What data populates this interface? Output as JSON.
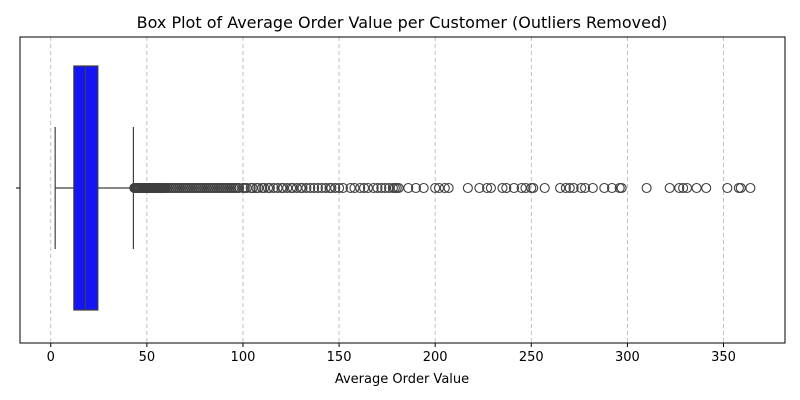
{
  "chart_data": {
    "type": "box",
    "title": "Box Plot of Average Order Value per Customer (Outliers Removed)",
    "xlabel": "Average Order Value",
    "ylabel": "",
    "xlim": [
      -16,
      382
    ],
    "xticks": [
      0,
      50,
      100,
      150,
      200,
      250,
      300,
      350
    ],
    "y_tick_labels": [
      ""
    ],
    "grid": {
      "x": true,
      "y": false,
      "style": "dashed"
    },
    "box": {
      "whisker_low": 2.3,
      "q1": 12.0,
      "median": 18.0,
      "q3": 24.5,
      "whisker_high": 43.0,
      "color": "#1414f5",
      "edge_color": "#3f3f3f",
      "median_color": "#3f3f3f"
    },
    "outliers": [
      43.5,
      44,
      44.5,
      45,
      45.5,
      46,
      46.5,
      47,
      47.5,
      48,
      48.5,
      49,
      49.5,
      50,
      50.5,
      51,
      51.5,
      52,
      52.5,
      53,
      53.5,
      54,
      54.5,
      55,
      55.5,
      56,
      56.5,
      57,
      57.5,
      58,
      58.5,
      59,
      59.5,
      60,
      61,
      62,
      63,
      64,
      65,
      66,
      67,
      68,
      69,
      70,
      71,
      72,
      73,
      74,
      75,
      76,
      77,
      78,
      79,
      80,
      81,
      82,
      83,
      84,
      85,
      86,
      87,
      88,
      89,
      90,
      91,
      92,
      93,
      94,
      95,
      96,
      97,
      98,
      100,
      101,
      102,
      104,
      105,
      107,
      108,
      110,
      111,
      113,
      114,
      116,
      118,
      120,
      121,
      123,
      125,
      126,
      128,
      130,
      131,
      133,
      135,
      137,
      139,
      141,
      143,
      145,
      146,
      148,
      150,
      152,
      156,
      158,
      161,
      163,
      165,
      168,
      170,
      172,
      174,
      176,
      178,
      179,
      180,
      181,
      186,
      190,
      194,
      200,
      202,
      205,
      207,
      217,
      223,
      227,
      229,
      235,
      237,
      241,
      245,
      247,
      250,
      251,
      257,
      265,
      268,
      270,
      272,
      276,
      278,
      282,
      288,
      292,
      296,
      297,
      310,
      322,
      327,
      329,
      331,
      336,
      341,
      352,
      358,
      359,
      364
    ],
    "marker": {
      "shape": "open-circle",
      "color": "#3f3f3f"
    }
  }
}
